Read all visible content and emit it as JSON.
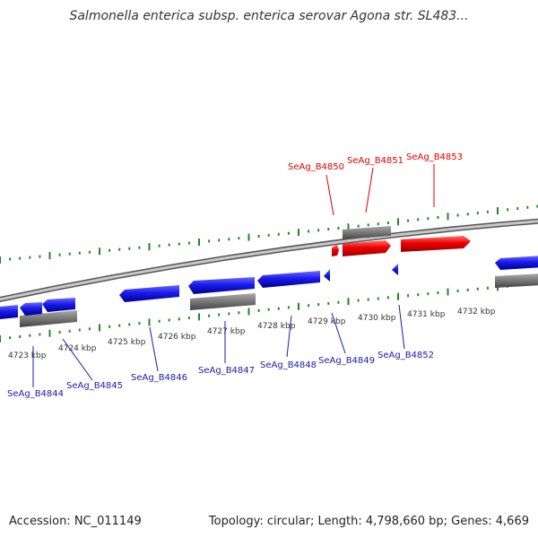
{
  "title": "Salmonella enterica subsp. enterica serovar Agona str. SL483...",
  "footer": {
    "accession": "Accession: NC_011149",
    "summary": "Topology: circular; Length: 4,798,660 bp; Genes: 4,669"
  },
  "colors": {
    "forward_gene": "#ee0000",
    "reverse_gene": "#1a1aee",
    "tick": "#228822",
    "backbone": "#888888",
    "rna_bar": "#777777",
    "forward_label": "#dd0000",
    "reverse_label": "#1a1aaa"
  },
  "kbp_labels": [
    "4723 kbp",
    "4724 kbp",
    "4725 kbp",
    "4726 kbp",
    "4727 kbp",
    "4728 kbp",
    "4729 kbp",
    "4730 kbp",
    "4731 kbp",
    "4732 kbp"
  ],
  "forward_genes": [
    "SeAg_B4850",
    "SeAg_B4851",
    "SeAg_B4853"
  ],
  "reverse_genes": [
    "SeAg_B4844",
    "SeAg_B4845",
    "SeAg_B4846",
    "SeAg_B4847",
    "SeAg_B4848",
    "SeAg_B4849",
    "SeAg_B4852"
  ]
}
